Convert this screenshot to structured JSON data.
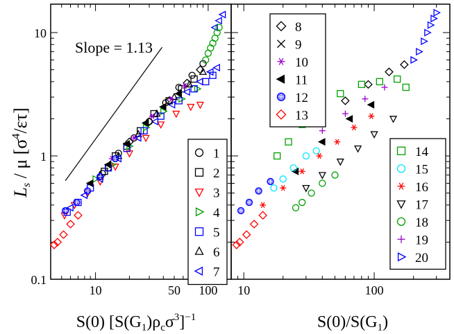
{
  "chart_data": [
    {
      "type": "scatter",
      "panel": "left",
      "xscale": "log",
      "yscale": "log",
      "xlim": [
        4.0,
        160
      ],
      "ylim": [
        0.1,
        17
      ],
      "xlabel": "S(0) [S(G1)ρcσ3]−1",
      "ylabel": "Ls / μ [σ4/ετ]",
      "annotation": "Slope = 1.13",
      "slope_line": {
        "slope": 1.13,
        "x0": 5.4,
        "y0": 0.63,
        "x1": 39,
        "y1": 7.6
      },
      "x_ticks": [
        {
          "value": 10,
          "label": "10"
        },
        {
          "value": 50,
          "label": "50"
        },
        {
          "value": 100,
          "label": "100"
        }
      ],
      "y_ticks": [
        {
          "value": 0.1,
          "label": "0.1"
        },
        {
          "value": 1,
          "label": "1"
        },
        {
          "value": 10,
          "label": "10"
        }
      ],
      "legend": {
        "position": "bottom-right",
        "entries": [
          "1",
          "2",
          "3",
          "4",
          "5",
          "6",
          "7"
        ]
      }
    },
    {
      "type": "scatter",
      "panel": "right",
      "xscale": "log",
      "yscale": "log",
      "xlim": [
        8.0,
        380
      ],
      "ylim": [
        0.1,
        17
      ],
      "xlabel": "S(0)/S(G1)",
      "x_ticks": [
        {
          "value": 10,
          "label": "10"
        },
        {
          "value": 100,
          "label": "100"
        }
      ],
      "legend_top": {
        "position": "top-left",
        "entries": [
          "8",
          "9",
          "10",
          "11",
          "12",
          "13"
        ]
      },
      "legend_bottom": {
        "position": "bottom-right",
        "entries": [
          "14",
          "15",
          "16",
          "17",
          "18",
          "19",
          "20"
        ]
      }
    }
  ],
  "series_styles": {
    "1": {
      "marker": "circle",
      "color": "#000000"
    },
    "2": {
      "marker": "square",
      "color": "#000000"
    },
    "3": {
      "marker": "triangle-down",
      "color": "#ff0000"
    },
    "4": {
      "marker": "triangle-right",
      "color": "#00a000"
    },
    "5": {
      "marker": "square",
      "color": "#0000ff"
    },
    "6": {
      "marker": "triangle-up",
      "color": "#000000"
    },
    "7": {
      "marker": "triangle-left",
      "color": "#0000ff"
    },
    "8": {
      "marker": "diamond",
      "color": "#000000"
    },
    "9": {
      "marker": "x",
      "color": "#000000"
    },
    "10": {
      "marker": "asterisk",
      "color": "#9900cc"
    },
    "11": {
      "marker": "filled-triangle-left",
      "color": "#000000"
    },
    "12": {
      "marker": "hatched-circle",
      "color": "#0000ff"
    },
    "13": {
      "marker": "diamond",
      "color": "#ff0000"
    },
    "14": {
      "marker": "square",
      "color": "#00a000"
    },
    "15": {
      "marker": "circle",
      "color": "#00e5ff"
    },
    "16": {
      "marker": "asterisk",
      "color": "#ff0000"
    },
    "17": {
      "marker": "triangle-down",
      "color": "#000000"
    },
    "18": {
      "marker": "circle",
      "color": "#00a000"
    },
    "19": {
      "marker": "plus",
      "color": "#9900cc"
    },
    "20": {
      "marker": "triangle-right",
      "color": "#0000ff"
    }
  },
  "ylabel_parts": {
    "L": "L",
    "sub": "s",
    "rest": " / μ  [σ",
    "pow": "4",
    "tail": "/ετ]"
  },
  "xlabel_left_parts": {
    "a": "S(0) [S(G",
    "sub1": "1",
    "b": ")ρ",
    "sub2": "c",
    "c": "σ",
    "sup3": "3",
    "d": "]",
    "sup4": "−1"
  },
  "xlabel_right_parts": {
    "a": "S(0)/S(G",
    "sub1": "1",
    "b": ")"
  },
  "series_points": {
    "left": {
      "1": [
        [
          11.5,
          0.72
        ],
        [
          13.0,
          0.8
        ],
        [
          16.0,
          1.05
        ],
        [
          22.0,
          1.4
        ],
        [
          30,
          1.9
        ],
        [
          42,
          2.7
        ],
        [
          55,
          3.6
        ],
        [
          72,
          4.5
        ],
        [
          90,
          5.6
        ]
      ],
      "2": [
        [
          12.0,
          0.75
        ],
        [
          15.0,
          1.0
        ],
        [
          19.0,
          1.2
        ],
        [
          25,
          1.6
        ],
        [
          33,
          2.2
        ],
        [
          45,
          2.8
        ],
        [
          58,
          3.5
        ],
        [
          75,
          4.2
        ]
      ],
      "3": [
        [
          5.3,
          0.33
        ],
        [
          6.5,
          0.4
        ],
        [
          8.5,
          0.5
        ],
        [
          11,
          0.62
        ],
        [
          15,
          0.82
        ],
        [
          20,
          1.05
        ],
        [
          28,
          1.4
        ],
        [
          38,
          1.8
        ],
        [
          52,
          2.2
        ],
        [
          70,
          2.5
        ],
        [
          85,
          2.6
        ]
      ],
      "4": [
        [
          10,
          0.65
        ],
        [
          14,
          0.85
        ],
        [
          20,
          1.2
        ],
        [
          28,
          1.7
        ],
        [
          40,
          2.3
        ],
        [
          58,
          2.9
        ],
        [
          80,
          3.5
        ]
      ],
      "5": [
        [
          5.6,
          0.35
        ],
        [
          7,
          0.42
        ],
        [
          9,
          0.55
        ],
        [
          13,
          0.8
        ],
        [
          19,
          1.15
        ],
        [
          27,
          1.6
        ],
        [
          38,
          2.1
        ],
        [
          55,
          2.8
        ],
        [
          75,
          3.5
        ],
        [
          95,
          4.0
        ],
        [
          110,
          4.5
        ]
      ],
      "6": [
        [
          11,
          0.7
        ],
        [
          16,
          1.0
        ],
        [
          24,
          1.5
        ],
        [
          35,
          2.2
        ],
        [
          50,
          3.0
        ],
        [
          68,
          3.8
        ],
        [
          90,
          4.8
        ]
      ],
      "7": [
        [
          6,
          0.38
        ],
        [
          8,
          0.48
        ],
        [
          11,
          0.65
        ],
        [
          16,
          0.95
        ],
        [
          24,
          1.4
        ],
        [
          34,
          1.9
        ],
        [
          48,
          2.6
        ],
        [
          65,
          3.3
        ],
        [
          85,
          4.0
        ],
        [
          105,
          4.8
        ],
        [
          120,
          5.2
        ],
        [
          115,
          11
        ],
        [
          125,
          12.5
        ],
        [
          135,
          14
        ]
      ],
      "8": [
        [
          20,
          1.3
        ],
        [
          30,
          1.9
        ],
        [
          45,
          2.8
        ],
        [
          65,
          3.9
        ],
        [
          85,
          5.0
        ]
      ],
      "10": [
        [
          14,
          0.95
        ],
        [
          22,
          1.4
        ],
        [
          32,
          2.1
        ],
        [
          47,
          2.9
        ],
        [
          62,
          3.7
        ]
      ],
      "11": [
        [
          9,
          0.6
        ],
        [
          13,
          0.85
        ],
        [
          19,
          1.25
        ],
        [
          28,
          1.85
        ],
        [
          40,
          2.5
        ],
        [
          55,
          3.2
        ]
      ],
      "12": [
        [
          5.4,
          0.36
        ],
        [
          6.8,
          0.42
        ],
        [
          8.5,
          0.52
        ],
        [
          11,
          0.68
        ],
        [
          15,
          0.95
        ]
      ],
      "13": [
        [
          4.3,
          0.19
        ],
        [
          4.6,
          0.2
        ],
        [
          5.2,
          0.23
        ],
        [
          6,
          0.28
        ],
        [
          7,
          0.33
        ]
      ],
      "18": [
        [
          95,
          6.0
        ],
        [
          100,
          6.8
        ],
        [
          105,
          7.5
        ],
        [
          110,
          8.2
        ],
        [
          115,
          9.0
        ],
        [
          120,
          10.0
        ],
        [
          125,
          11.0
        ]
      ]
    },
    "right": {
      "8": [
        [
          60,
          2.8
        ],
        [
          90,
          3.8
        ],
        [
          130,
          4.8
        ],
        [
          170,
          5.5
        ]
      ],
      "11": [
        [
          25,
          0.75
        ],
        [
          40,
          1.3
        ],
        [
          65,
          2.0
        ],
        [
          95,
          2.6
        ]
      ],
      "12": [
        [
          9.5,
          0.36
        ],
        [
          11,
          0.42
        ],
        [
          13,
          0.52
        ],
        [
          16,
          0.62
        ]
      ],
      "13": [
        [
          8.8,
          0.19
        ],
        [
          9.3,
          0.2
        ],
        [
          10.5,
          0.23
        ],
        [
          12,
          0.28
        ],
        [
          14,
          0.33
        ]
      ],
      "14": [
        [
          18,
          1.0
        ],
        [
          22,
          1.3
        ],
        [
          28,
          1.8
        ],
        [
          38,
          2.5
        ],
        [
          55,
          3.2
        ],
        [
          80,
          3.8
        ],
        [
          110,
          4.0
        ],
        [
          150,
          4.2
        ],
        [
          175,
          3.6
        ]
      ],
      "15": [
        [
          17,
          0.55
        ],
        [
          20,
          0.65
        ],
        [
          24,
          0.8
        ],
        [
          30,
          1.0
        ],
        [
          36,
          1.1
        ]
      ],
      "16": [
        [
          14,
          0.4
        ],
        [
          20,
          0.55
        ],
        [
          28,
          0.75
        ],
        [
          38,
          1.0
        ],
        [
          52,
          1.3
        ],
        [
          70,
          1.7
        ],
        [
          95,
          2.1
        ]
      ],
      "17": [
        [
          30,
          0.55
        ],
        [
          40,
          0.7
        ],
        [
          55,
          0.9
        ],
        [
          75,
          1.15
        ],
        [
          100,
          1.5
        ],
        [
          140,
          2.0
        ]
      ],
      "18": [
        [
          25,
          0.38
        ],
        [
          28,
          0.42
        ],
        [
          33,
          0.5
        ],
        [
          40,
          0.6
        ],
        [
          50,
          0.7
        ]
      ],
      "19": [
        [
          40,
          1.6
        ],
        [
          60,
          2.2
        ],
        [
          85,
          2.9
        ],
        [
          120,
          3.6
        ]
      ],
      "20": [
        [
          200,
          6.0
        ],
        [
          220,
          7.0
        ],
        [
          240,
          8.5
        ],
        [
          255,
          10.0
        ],
        [
          270,
          11.5
        ],
        [
          285,
          13.0
        ],
        [
          300,
          14.5
        ]
      ]
    }
  }
}
